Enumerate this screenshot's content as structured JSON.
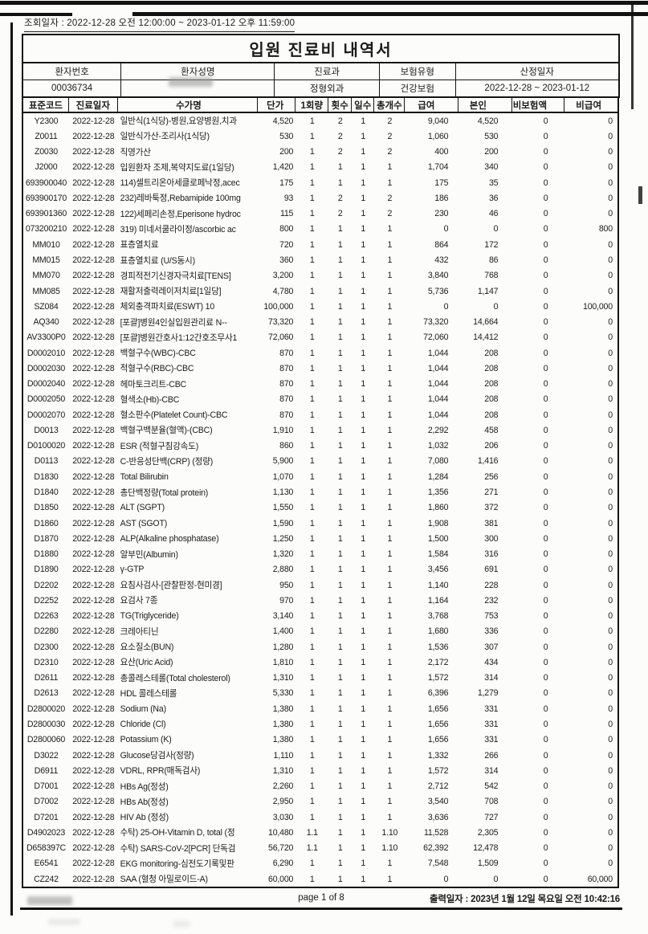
{
  "meta": {
    "query_line": "조회일자 : 2022-12-28 오전 12:00:00 ~ 2023-01-12 오후 11:59:00"
  },
  "title": "입원 진료비 내역서",
  "patient": {
    "headers": [
      "환자번호",
      "환자성명",
      "진료과",
      "보험유형",
      "산정일자"
    ],
    "values": [
      "00036734",
      "",
      "정형외과",
      "건강보험",
      "2022-12-28 ~ 2023-01-12"
    ],
    "name_redacted": true
  },
  "table": {
    "columns": [
      "표준코드",
      "진료일자",
      "수가명",
      "단가",
      "1회량",
      "횟수",
      "일수",
      "총개수",
      "급여",
      "본인",
      "비보험액",
      "비급여"
    ],
    "rows": [
      [
        "Y2300",
        "2022-12-28",
        "일반식(1식당)-병원,요양병원,치과",
        "4,520",
        "1",
        "2",
        "1",
        "2",
        "9,040",
        "4,520",
        "0",
        "0"
      ],
      [
        "Z0011",
        "2022-12-28",
        "일반식가산-조리사(1식당)",
        "530",
        "1",
        "2",
        "1",
        "2",
        "1,060",
        "530",
        "0",
        "0"
      ],
      [
        "Z0030",
        "2022-12-28",
        "직영가산",
        "200",
        "1",
        "2",
        "1",
        "2",
        "400",
        "200",
        "0",
        "0"
      ],
      [
        "J2000",
        "2022-12-28",
        "입원환자 조제,복약지도료(1일당)",
        "1,420",
        "1",
        "1",
        "1",
        "1",
        "1,704",
        "340",
        "0",
        "0"
      ],
      [
        "693900040",
        "2022-12-28",
        "114)셀트리온아세클로페낙정,acec",
        "175",
        "1",
        "1",
        "1",
        "1",
        "175",
        "35",
        "0",
        "0"
      ],
      [
        "693900170",
        "2022-12-28",
        "232)레바툭정,Rebamipide 100mg",
        "93",
        "1",
        "2",
        "1",
        "2",
        "186",
        "36",
        "0",
        "0"
      ],
      [
        "693901360",
        "2022-12-28",
        "122)세페리손정,Eperisone hydroc",
        "115",
        "1",
        "2",
        "1",
        "2",
        "230",
        "46",
        "0",
        "0"
      ],
      [
        "073200210",
        "2022-12-28",
        "319) 미네서쿨라이정/ascorbic ac",
        "800",
        "1",
        "1",
        "1",
        "1",
        "0",
        "0",
        "0",
        "800"
      ],
      [
        "MM010",
        "2022-12-28",
        "표층열치료",
        "720",
        "1",
        "1",
        "1",
        "1",
        "864",
        "172",
        "0",
        "0"
      ],
      [
        "MM015",
        "2022-12-28",
        "표층열치료 (U/S동시)",
        "360",
        "1",
        "1",
        "1",
        "1",
        "432",
        "86",
        "0",
        "0"
      ],
      [
        "MM070",
        "2022-12-28",
        "경피적전기신경자극치료[TENS]",
        "3,200",
        "1",
        "1",
        "1",
        "1",
        "3,840",
        "768",
        "0",
        "0"
      ],
      [
        "MM085",
        "2022-12-28",
        "재활저출력레이저치료[1일당]",
        "4,780",
        "1",
        "1",
        "1",
        "1",
        "5,736",
        "1,147",
        "0",
        "0"
      ],
      [
        "SZ084",
        "2022-12-28",
        "체외충격파치료(ESWT) 10",
        "100,000",
        "1",
        "1",
        "1",
        "1",
        "0",
        "0",
        "0",
        "100,000"
      ],
      [
        "AQ340",
        "2022-12-28",
        "[포괄]병원4인실입원관리료 N--",
        "73,320",
        "1",
        "1",
        "1",
        "1",
        "73,320",
        "14,664",
        "0",
        "0"
      ],
      [
        "AV3300P0",
        "2022-12-28",
        "[포괄]병원간호사1:12간호조무사1",
        "72,060",
        "1",
        "1",
        "1",
        "1",
        "72,060",
        "14,412",
        "0",
        "0"
      ],
      [
        "D0002010",
        "2022-12-28",
        "백혈구수(WBC)-CBC",
        "870",
        "1",
        "1",
        "1",
        "1",
        "1,044",
        "208",
        "0",
        "0"
      ],
      [
        "D0002030",
        "2022-12-28",
        "적혈구수(RBC)-CBC",
        "870",
        "1",
        "1",
        "1",
        "1",
        "1,044",
        "208",
        "0",
        "0"
      ],
      [
        "D0002040",
        "2022-12-28",
        "헤마토크리트-CBC",
        "870",
        "1",
        "1",
        "1",
        "1",
        "1,044",
        "208",
        "0",
        "0"
      ],
      [
        "D0002050",
        "2022-12-28",
        "혈색소(Hb)-CBC",
        "870",
        "1",
        "1",
        "1",
        "1",
        "1,044",
        "208",
        "0",
        "0"
      ],
      [
        "D0002070",
        "2022-12-28",
        "혈소판수(Platelet Count)-CBC",
        "870",
        "1",
        "1",
        "1",
        "1",
        "1,044",
        "208",
        "0",
        "0"
      ],
      [
        "D0013",
        "2022-12-28",
        "백혈구백분율(혈액)-(CBC)",
        "1,910",
        "1",
        "1",
        "1",
        "1",
        "2,292",
        "458",
        "0",
        "0"
      ],
      [
        "D0100020",
        "2022-12-28",
        "ESR (적혈구침강속도)",
        "860",
        "1",
        "1",
        "1",
        "1",
        "1,032",
        "206",
        "0",
        "0"
      ],
      [
        "D0113",
        "2022-12-28",
        "C-반응성단백(CRP) (정량)",
        "5,900",
        "1",
        "1",
        "1",
        "1",
        "7,080",
        "1,416",
        "0",
        "0"
      ],
      [
        "D1830",
        "2022-12-28",
        "Total Bilirubin",
        "1,070",
        "1",
        "1",
        "1",
        "1",
        "1,284",
        "256",
        "0",
        "0"
      ],
      [
        "D1840",
        "2022-12-28",
        "총단백정량(Total protein)",
        "1,130",
        "1",
        "1",
        "1",
        "1",
        "1,356",
        "271",
        "0",
        "0"
      ],
      [
        "D1850",
        "2022-12-28",
        "ALT (SGPT)",
        "1,550",
        "1",
        "1",
        "1",
        "1",
        "1,860",
        "372",
        "0",
        "0"
      ],
      [
        "D1860",
        "2022-12-28",
        "AST (SGOT)",
        "1,590",
        "1",
        "1",
        "1",
        "1",
        "1,908",
        "381",
        "0",
        "0"
      ],
      [
        "D1870",
        "2022-12-28",
        "ALP(Alkaline phosphatase)",
        "1,250",
        "1",
        "1",
        "1",
        "1",
        "1,500",
        "300",
        "0",
        "0"
      ],
      [
        "D1880",
        "2022-12-28",
        "알부민(Albumin)",
        "1,320",
        "1",
        "1",
        "1",
        "1",
        "1,584",
        "316",
        "0",
        "0"
      ],
      [
        "D1890",
        "2022-12-28",
        "γ-GTP",
        "2,880",
        "1",
        "1",
        "1",
        "1",
        "3,456",
        "691",
        "0",
        "0"
      ],
      [
        "D2202",
        "2022-12-28",
        "요침사검사-[관찰판정-현미경]",
        "950",
        "1",
        "1",
        "1",
        "1",
        "1,140",
        "228",
        "0",
        "0"
      ],
      [
        "D2252",
        "2022-12-28",
        "요검사 7종",
        "970",
        "1",
        "1",
        "1",
        "1",
        "1,164",
        "232",
        "0",
        "0"
      ],
      [
        "D2263",
        "2022-12-28",
        "TG(Triglyceride)",
        "3,140",
        "1",
        "1",
        "1",
        "1",
        "3,768",
        "753",
        "0",
        "0"
      ],
      [
        "D2280",
        "2022-12-28",
        "크레아티닌",
        "1,400",
        "1",
        "1",
        "1",
        "1",
        "1,680",
        "336",
        "0",
        "0"
      ],
      [
        "D2300",
        "2022-12-28",
        "요소질소(BUN)",
        "1,280",
        "1",
        "1",
        "1",
        "1",
        "1,536",
        "307",
        "0",
        "0"
      ],
      [
        "D2310",
        "2022-12-28",
        "요산(Uric Acid)",
        "1,810",
        "1",
        "1",
        "1",
        "1",
        "2,172",
        "434",
        "0",
        "0"
      ],
      [
        "D2611",
        "2022-12-28",
        "총콜레스테롤(Total cholesterol)",
        "1,310",
        "1",
        "1",
        "1",
        "1",
        "1,572",
        "314",
        "0",
        "0"
      ],
      [
        "D2613",
        "2022-12-28",
        "HDL 콜레스테롤",
        "5,330",
        "1",
        "1",
        "1",
        "1",
        "6,396",
        "1,279",
        "0",
        "0"
      ],
      [
        "D2800020",
        "2022-12-28",
        "Sodium (Na)",
        "1,380",
        "1",
        "1",
        "1",
        "1",
        "1,656",
        "331",
        "0",
        "0"
      ],
      [
        "D2800030",
        "2022-12-28",
        "Chloride (Cl)",
        "1,380",
        "1",
        "1",
        "1",
        "1",
        "1,656",
        "331",
        "0",
        "0"
      ],
      [
        "D2800060",
        "2022-12-28",
        "Potassium (K)",
        "1,380",
        "1",
        "1",
        "1",
        "1",
        "1,656",
        "331",
        "0",
        "0"
      ],
      [
        "D3022",
        "2022-12-28",
        "Glucose당검사(정량)",
        "1,110",
        "1",
        "1",
        "1",
        "1",
        "1,332",
        "266",
        "0",
        "0"
      ],
      [
        "D6911",
        "2022-12-28",
        "VDRL, RPR(매독검사)",
        "1,310",
        "1",
        "1",
        "1",
        "1",
        "1,572",
        "314",
        "0",
        "0"
      ],
      [
        "D7001",
        "2022-12-28",
        "HBs Ag(정성)",
        "2,260",
        "1",
        "1",
        "1",
        "1",
        "2,712",
        "542",
        "0",
        "0"
      ],
      [
        "D7002",
        "2022-12-28",
        "HBs Ab(정성)",
        "2,950",
        "1",
        "1",
        "1",
        "1",
        "3,540",
        "708",
        "0",
        "0"
      ],
      [
        "D7201",
        "2022-12-28",
        "HIV Ab (정성)",
        "3,030",
        "1",
        "1",
        "1",
        "1",
        "3,636",
        "727",
        "0",
        "0"
      ],
      [
        "D4902023",
        "2022-12-28",
        "수탁) 25-OH-Vitamin D, total (정",
        "10,480",
        "1.1",
        "1",
        "1",
        "1.10",
        "11,528",
        "2,305",
        "0",
        "0"
      ],
      [
        "D658397C",
        "2022-12-28",
        "수탁) SARS-CoV-2[PCR] 단독검",
        "56,720",
        "1.1",
        "1",
        "1",
        "1.10",
        "62,392",
        "12,478",
        "0",
        "0"
      ],
      [
        "E6541",
        "2022-12-28",
        "EKG monitoring-심전도기록및판",
        "6,290",
        "1",
        "1",
        "1",
        "1",
        "7,548",
        "1,509",
        "0",
        "0"
      ],
      [
        "CZ242",
        "2022-12-28",
        "SAA (혈청 아밀로이드-A)",
        "60,000",
        "1",
        "1",
        "1",
        "1",
        "0",
        "0",
        "0",
        "60,000"
      ]
    ]
  },
  "footer": {
    "page_label": "page 1 of 8",
    "print_label": "출력일자 : 2023년 1월 12일 목요일 오전 10:42:16"
  },
  "colors": {
    "ink": "#1b1b1b",
    "paper": "#fcfcfa",
    "redaction": "#9a9a9a"
  }
}
